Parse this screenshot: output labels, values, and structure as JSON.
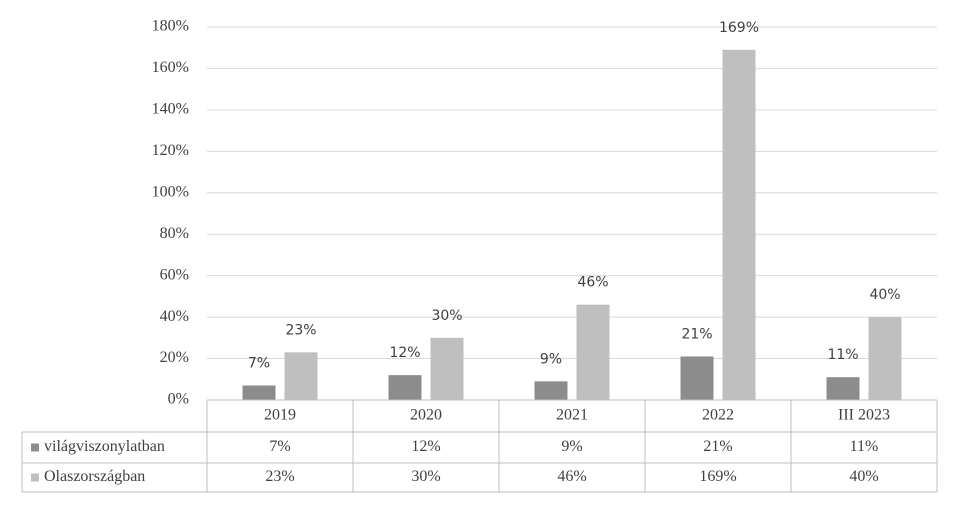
{
  "chart_data": {
    "type": "bar",
    "categories": [
      "2019",
      "2020",
      "2021",
      "2022",
      "III 2023"
    ],
    "series": [
      {
        "name": "világviszonylatban",
        "color": "#8c8c8c",
        "values": [
          7,
          12,
          9,
          21,
          11
        ],
        "value_labels": [
          "7%",
          "12%",
          "9%",
          "21%",
          "11%"
        ]
      },
      {
        "name": "Olaszországban",
        "color": "#bfbfbf",
        "values": [
          23,
          30,
          46,
          169,
          40
        ],
        "value_labels": [
          "23%",
          "30%",
          "46%",
          "169%",
          "40%"
        ]
      }
    ],
    "ylim": [
      0,
      180
    ],
    "yticks": [
      {
        "value": 0,
        "label": "0%"
      },
      {
        "value": 20,
        "label": "20%"
      },
      {
        "value": 40,
        "label": "40%"
      },
      {
        "value": 60,
        "label": "60%"
      },
      {
        "value": 80,
        "label": "80%"
      },
      {
        "value": 100,
        "label": "100%"
      },
      {
        "value": 120,
        "label": "120%"
      },
      {
        "value": 140,
        "label": "140%"
      },
      {
        "value": 160,
        "label": "160%"
      },
      {
        "value": 180,
        "label": "180%"
      }
    ],
    "grid": true,
    "data_table": true
  }
}
